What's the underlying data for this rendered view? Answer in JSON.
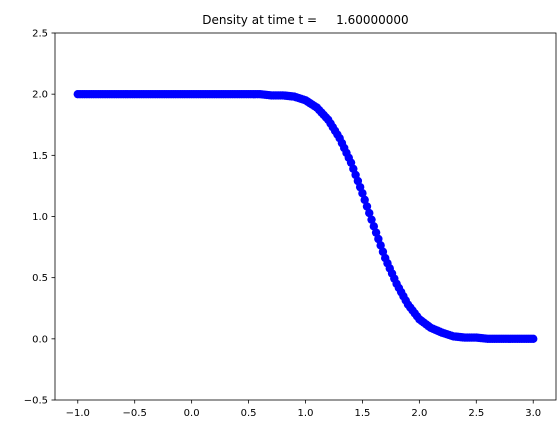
{
  "chart_data": {
    "type": "scatter",
    "title": "Density at time t =     1.60000000",
    "xlabel": "",
    "ylabel": "",
    "xlim": [
      -1.2,
      3.2
    ],
    "ylim": [
      -0.5,
      2.5
    ],
    "xticks": [
      "−1.0",
      "−0.5",
      "0.0",
      "0.5",
      "1.0",
      "1.5",
      "2.0",
      "2.5",
      "3.0"
    ],
    "yticks": [
      "−0.5",
      "0.0",
      "0.5",
      "1.0",
      "1.5",
      "2.0",
      "2.5"
    ],
    "grid": false,
    "marker_color": "#0000ff",
    "series": [
      {
        "x": [
          -1.0,
          -0.9,
          -0.8,
          -0.7,
          -0.6,
          -0.5,
          -0.4,
          -0.3,
          -0.2,
          -0.1,
          0.0,
          0.1,
          0.2,
          0.3,
          0.4,
          0.5,
          0.6,
          0.7,
          0.8,
          0.9,
          1.0,
          1.1,
          1.2,
          1.3,
          1.4,
          1.5,
          1.6,
          1.7,
          1.8,
          1.9,
          2.0,
          2.1,
          2.2,
          2.3,
          2.4,
          2.5,
          2.6,
          2.7,
          2.8,
          2.9,
          3.0
        ],
        "y": [
          2.0,
          2.0,
          2.0,
          2.0,
          2.0,
          2.0,
          2.0,
          2.0,
          2.0,
          2.0,
          2.0,
          2.0,
          2.0,
          2.0,
          2.0,
          2.0,
          2.0,
          1.99,
          1.99,
          1.98,
          1.95,
          1.89,
          1.79,
          1.64,
          1.44,
          1.19,
          0.92,
          0.66,
          0.45,
          0.28,
          0.16,
          0.09,
          0.05,
          0.02,
          0.01,
          0.01,
          0.0,
          0.0,
          0.0,
          0.0,
          0.0
        ]
      }
    ]
  }
}
